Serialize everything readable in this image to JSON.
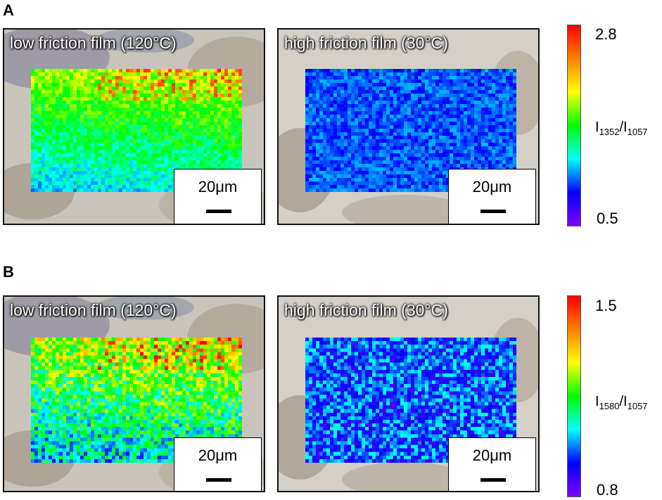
{
  "panels": [
    {
      "letter": "A",
      "images": [
        {
          "label": "low friction film (120°C)",
          "scale_bar": "20μm",
          "variant": "low"
        },
        {
          "label": "high friction film (30°C)",
          "scale_bar": "20μm",
          "variant": "high"
        }
      ],
      "colorbar": {
        "max": "2.8",
        "min": "0.5",
        "label_main": "I",
        "label_sub1": "1352",
        "label_sep": "/I",
        "label_sub2": "1057"
      }
    },
    {
      "letter": "B",
      "images": [
        {
          "label": "low friction film (120°C)",
          "scale_bar": "20μm",
          "variant": "low"
        },
        {
          "label": "high friction film (30°C)",
          "scale_bar": "20μm",
          "variant": "high"
        }
      ],
      "colorbar": {
        "max": "1.5",
        "min": "0.8",
        "label_main": "I",
        "label_sub1": "1580",
        "label_sep": "/I",
        "label_sub2": "1057"
      }
    }
  ],
  "colors": {
    "colormap": [
      "#7f00ff",
      "#0000ff",
      "#00ffff",
      "#00ff00",
      "#ffff00",
      "#ff7f00",
      "#ff0000"
    ]
  }
}
